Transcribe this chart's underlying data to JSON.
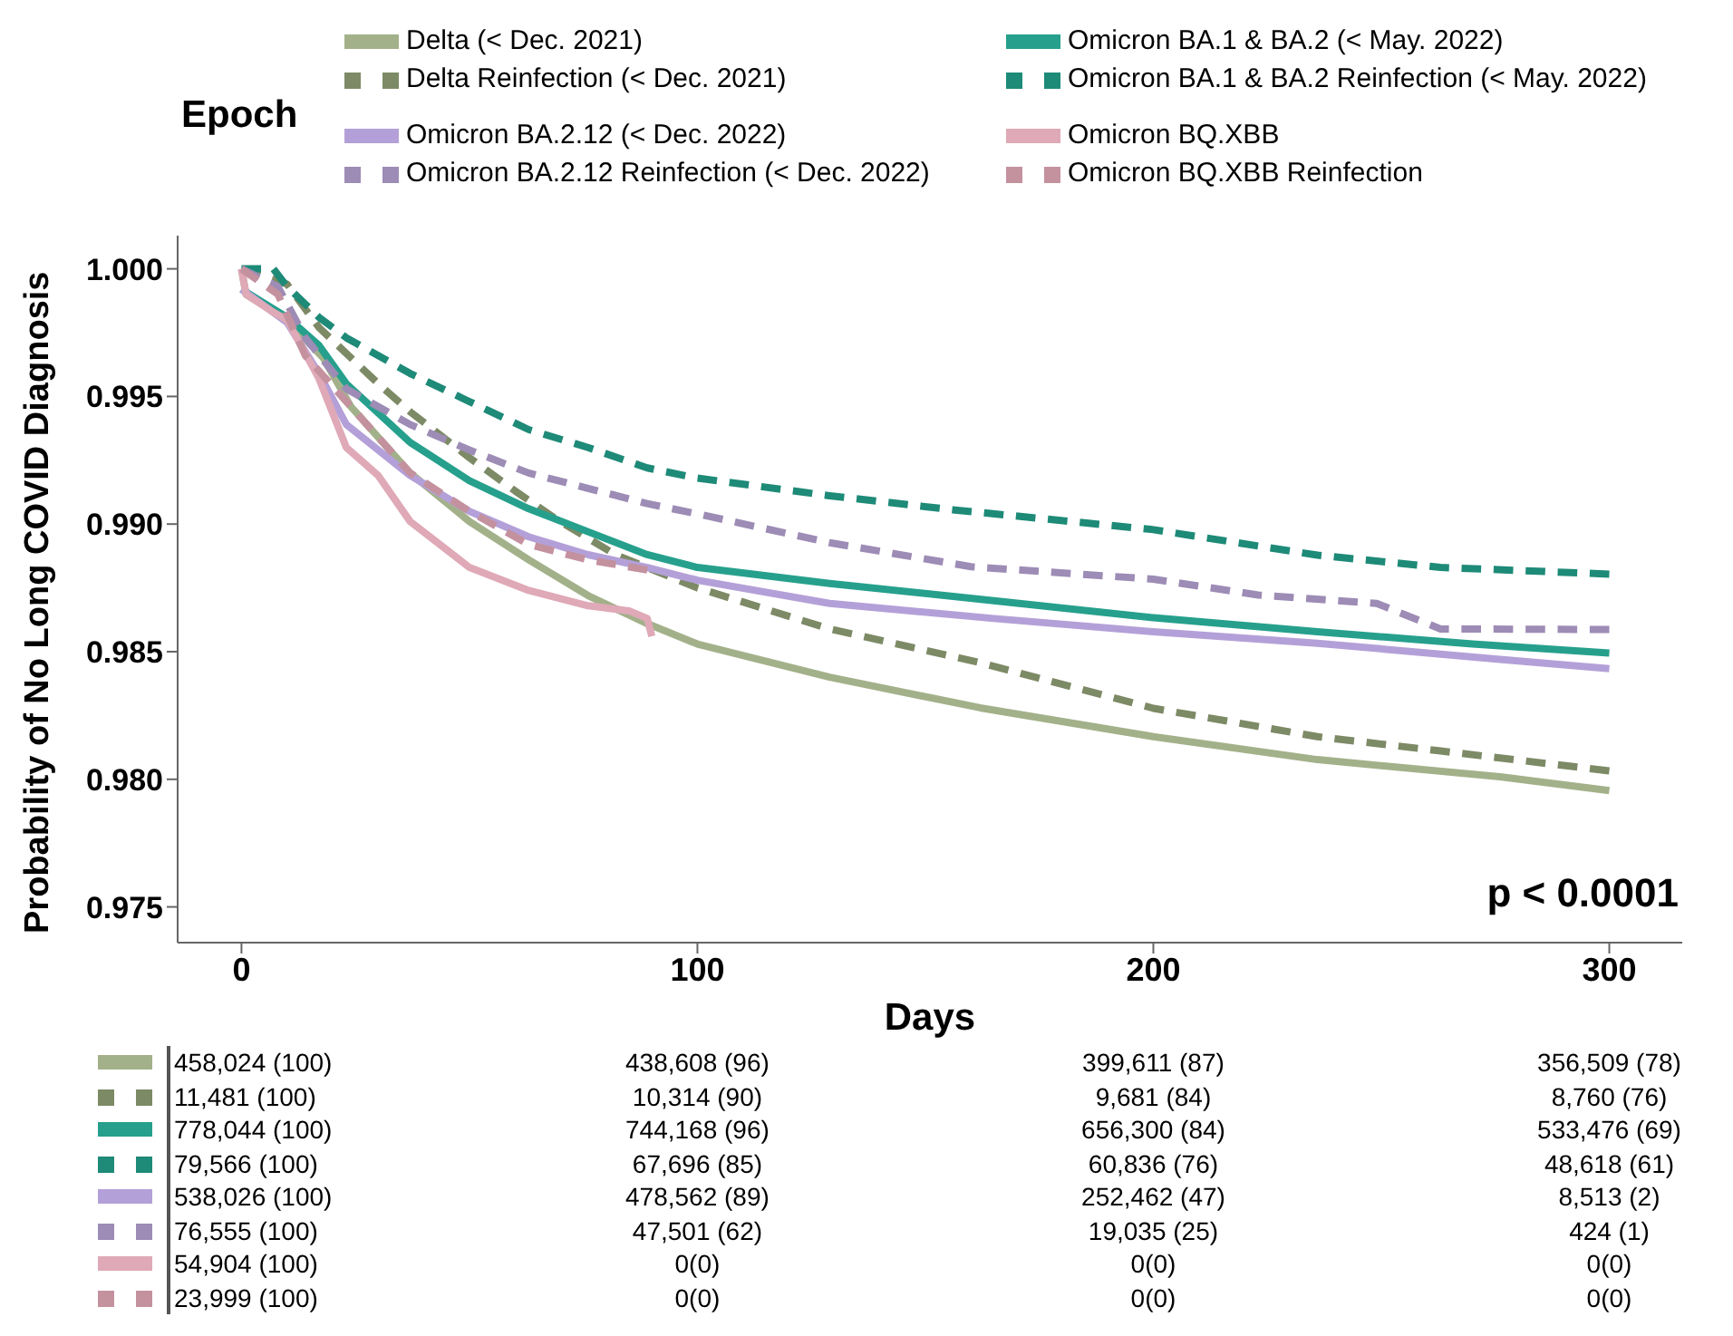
{
  "chart_data": {
    "type": "line",
    "xlabel": "Days",
    "ylabel": "Probability of No Long COVID Diagnosis",
    "legend_title": "Epoch",
    "legend": "top",
    "xlim": [
      -14,
      316
    ],
    "xticks": [
      0,
      100,
      200,
      300
    ],
    "ylim": [
      0.9736,
      1.0013
    ],
    "yticks": [
      {
        "value": 0.975,
        "label": "0.975"
      },
      {
        "value": 0.98,
        "label": "0.980"
      },
      {
        "value": 0.985,
        "label": "0.985"
      },
      {
        "value": 0.99,
        "label": "0.990"
      },
      {
        "value": 0.995,
        "label": "0.995"
      },
      {
        "value": 1,
        "label": "1.000"
      }
    ],
    "series": [
      {
        "name": "Delta (< Dec. 2021)",
        "color": "#a3b18a",
        "line_style": "solid",
        "x": [
          0,
          1,
          10,
          18,
          24,
          37,
          50,
          63,
          76,
          89,
          100,
          129,
          162,
          200,
          236,
          276,
          300
        ],
        "values": [
          1,
          0.999,
          0.998,
          0.9965,
          0.9946,
          0.992,
          0.9901,
          0.9886,
          0.9872,
          0.9861,
          0.9853,
          0.984,
          0.9828,
          0.98167,
          0.98077,
          0.9801,
          0.97956
        ]
      },
      {
        "name": "Delta Reinfection (< Dec. 2021)",
        "color": "#7d8a66",
        "line_style": "dashed",
        "x": [
          0,
          10,
          17,
          30,
          37,
          50,
          60,
          69,
          82,
          100,
          129,
          162,
          200,
          236,
          263,
          300
        ],
        "values": [
          1,
          0.9994,
          0.9977,
          0.9955,
          0.9944,
          0.9926,
          0.9913,
          0.9902,
          0.9888,
          0.9875,
          0.98589,
          0.98457,
          0.98278,
          0.98167,
          0.98111,
          0.98033
        ]
      },
      {
        "name": "Omicron BA.1 & BA.2 (< May. 2022)",
        "color": "#26a08c",
        "line_style": "solid",
        "x": [
          0,
          10,
          17,
          23,
          37,
          50,
          63,
          76,
          89,
          100,
          129,
          165,
          200,
          236,
          270,
          300
        ],
        "values": [
          0.9992,
          0.9981,
          0.997,
          0.9955,
          0.9932,
          0.9917,
          0.9906,
          0.9897,
          0.9888,
          0.9883,
          0.98767,
          0.987,
          0.98633,
          0.98578,
          0.9853,
          0.98495
        ]
      },
      {
        "name": "Omicron BA.1 & BA.2 Reinfection (< May. 2022)",
        "color": "#1e8a78",
        "line_style": "dashed",
        "x": [
          0,
          7,
          10,
          17,
          23,
          37,
          50,
          63,
          76,
          89,
          100,
          129,
          156,
          200,
          236,
          263,
          300
        ],
        "values": [
          1,
          1,
          0.9993,
          0.9981,
          0.9973,
          0.9959,
          0.9948,
          0.9937,
          0.993,
          0.9922,
          0.9918,
          0.99111,
          0.99056,
          0.98978,
          0.98878,
          0.9883,
          0.98804
        ]
      },
      {
        "name": "Omicron BA.2.12 (< Dec. 2022)",
        "color": "#b4a0d8",
        "line_style": "solid",
        "x": [
          0,
          10,
          17,
          23,
          37,
          50,
          63,
          76,
          89,
          100,
          129,
          165,
          200,
          236,
          276,
          300
        ],
        "values": [
          0.9992,
          0.9979,
          0.9959,
          0.9939,
          0.9919,
          0.9905,
          0.9895,
          0.9888,
          0.9883,
          0.9878,
          0.98689,
          0.9863,
          0.98578,
          0.98533,
          0.9847,
          0.98433
        ]
      },
      {
        "name": "Omicron BA.2.12 Reinfection (< Dec. 2022)",
        "color": "#9d8cb5",
        "line_style": "dashed",
        "x": [
          0,
          8,
          14,
          23,
          37,
          50,
          63,
          76,
          89,
          100,
          129,
          160,
          200,
          223,
          249,
          263,
          300
        ],
        "values": [
          1,
          0.9993,
          0.9973,
          0.9953,
          0.9939,
          0.9929,
          0.992,
          0.9914,
          0.9908,
          0.9904,
          0.98927,
          0.98833,
          0.98784,
          0.98722,
          0.98689,
          0.98589,
          0.98587
        ]
      },
      {
        "name": "Omicron BQ.XBB",
        "color": "#dfa9b7",
        "line_style": "solid",
        "x": [
          0,
          1,
          7,
          10,
          17,
          23,
          30,
          37,
          50,
          63,
          76,
          85,
          89,
          90
        ],
        "values": [
          1,
          0.999,
          0.9983,
          0.998,
          0.9957,
          0.993,
          0.9919,
          0.9901,
          0.9883,
          0.9874,
          0.9868,
          0.9866,
          0.9863,
          0.9856
        ]
      },
      {
        "name": "Omicron BQ.XBB Reinfection",
        "color": "#c4919f",
        "line_style": "dashed",
        "x": [
          0,
          8,
          14,
          23,
          37,
          50,
          63,
          76,
          89
        ],
        "values": [
          1,
          0.999,
          0.9966,
          0.9948,
          0.992,
          0.9905,
          0.9892,
          0.9886,
          0.9882
        ]
      }
    ],
    "annotations": [
      "p < 0.0001",
      "458,024 (100)",
      "438,608 (96)",
      "399,611 (87)",
      "356,509 (78)",
      "11,481 (100)",
      "10,314 (90)",
      "9,681 (84)",
      "8,760 (76)",
      "778,044 (100)",
      "744,168 (96)",
      "656,300 (84)",
      "533,476 (69)",
      "79,566 (100)",
      "67,696 (85)",
      "60,836 (76)",
      "48,618 (61)",
      "538,026 (100)",
      "478,562 (89)",
      "252,462 (47)",
      "8,513 (2)",
      "76,555 (100)",
      "47,501 (62)",
      "19,035 (25)",
      "424 (1)",
      "54,904 (100)",
      "0(0)",
      "0(0)",
      "0(0)",
      "23,999 (100)",
      "0(0)",
      "0(0)",
      "0(0)"
    ]
  }
}
